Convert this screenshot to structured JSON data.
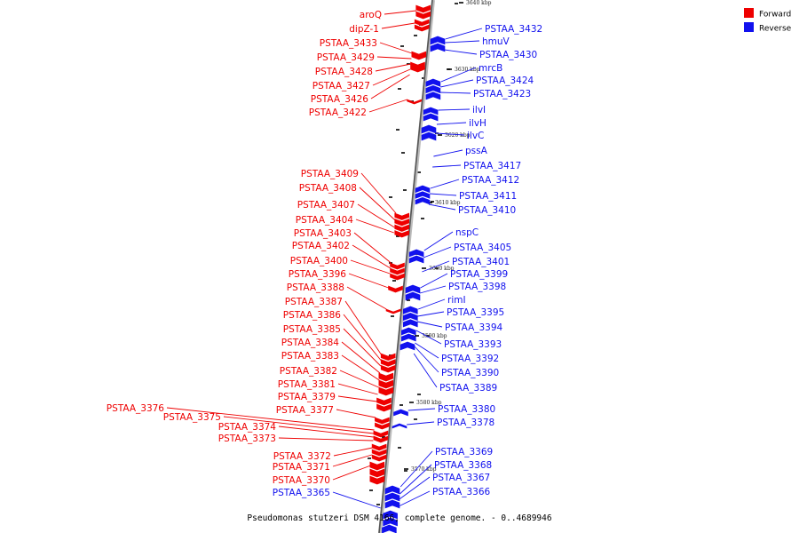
{
  "legend": {
    "forward_label": "Forward",
    "reverse_label": "Reverse",
    "forward_color": "#ee0000",
    "reverse_color": "#1111ee"
  },
  "caption": "Pseudomonas stutzeri DSM 4166, complete genome. - 0..4689946",
  "kbp_ticks": [
    "3640 kbp",
    "3630 kbp",
    "3620 kbp",
    "3610 kbp",
    "3600 kbp",
    "3590 kbp",
    "3580 kbp",
    "3570 kbp"
  ],
  "forward_genes": [
    "aroQ",
    "dipZ-1",
    "PSTAA_3433",
    "PSTAA_3429",
    "PSTAA_3428",
    "PSTAA_3427",
    "PSTAA_3426",
    "PSTAA_3422",
    "PSTAA_3409",
    "PSTAA_3408",
    "PSTAA_3407",
    "PSTAA_3404",
    "PSTAA_3403",
    "PSTAA_3402",
    "PSTAA_3400",
    "PSTAA_3396",
    "PSTAA_3388",
    "PSTAA_3387",
    "PSTAA_3386",
    "PSTAA_3385",
    "PSTAA_3384",
    "PSTAA_3383",
    "PSTAA_3382",
    "PSTAA_3381",
    "PSTAA_3379",
    "PSTAA_3377",
    "PSTAA_3376",
    "PSTAA_3375",
    "PSTAA_3374",
    "PSTAA_3373",
    "PSTAA_3372",
    "PSTAA_3371",
    "PSTAA_3370"
  ],
  "reverse_genes": [
    "PSTAA_3432",
    "hmuV",
    "PSTAA_3430",
    "mrcB",
    "PSTAA_3424",
    "PSTAA_3423",
    "ilvI",
    "ilvH",
    "ilvC",
    "pssA",
    "PSTAA_3417",
    "PSTAA_3412",
    "PSTAA_3411",
    "PSTAA_3410",
    "nspC",
    "PSTAA_3405",
    "PSTAA_3401",
    "PSTAA_3399",
    "PSTAA_3398",
    "rimI",
    "PSTAA_3395",
    "PSTAA_3394",
    "PSTAA_3393",
    "PSTAA_3392",
    "PSTAA_3390",
    "PSTAA_3389",
    "PSTAA_3380",
    "PSTAA_3378",
    "PSTAA_3369",
    "PSTAA_3368",
    "PSTAA_3367",
    "PSTAA_3366",
    "PSTAA_3365"
  ]
}
